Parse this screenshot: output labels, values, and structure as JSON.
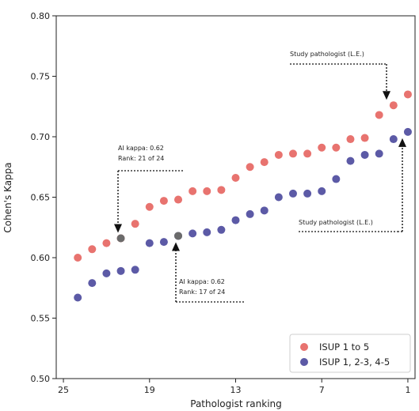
{
  "chart_data": {
    "type": "scatter",
    "xlabel": "Pathologist ranking",
    "ylabel": "Cohen's Kappa",
    "x_ticks": [
      25,
      19,
      13,
      7,
      1
    ],
    "y_ticks": [
      "0.50",
      "0.55",
      "0.60",
      "0.65",
      "0.70",
      "0.75",
      "0.80"
    ],
    "xlim": [
      25.5,
      0.5
    ],
    "ylim": [
      0.5,
      0.8
    ],
    "grid": false,
    "legend_position": "bottom-right",
    "series": [
      {
        "name": "ISUP 1 to 5",
        "color": "#e8736f",
        "x": [
          24,
          23,
          22,
          21,
          20,
          19,
          18,
          17,
          16,
          15,
          14,
          13,
          12,
          11,
          10,
          9,
          8,
          7,
          6,
          5,
          4,
          3,
          2,
          1
        ],
        "y": [
          0.6,
          0.607,
          0.612,
          0.616,
          0.628,
          0.642,
          0.647,
          0.648,
          0.655,
          0.655,
          0.656,
          0.666,
          0.675,
          0.679,
          0.685,
          0.686,
          0.686,
          0.691,
          0.691,
          0.698,
          0.699,
          0.718,
          0.726,
          0.735
        ]
      },
      {
        "name": "ISUP 1, 2-3, 4-5",
        "color": "#5c5aa6",
        "x": [
          24,
          23,
          22,
          21,
          20,
          19,
          18,
          17,
          16,
          15,
          14,
          13,
          12,
          11,
          10,
          9,
          8,
          7,
          6,
          5,
          4,
          3,
          2,
          1
        ],
        "y": [
          0.567,
          0.579,
          0.587,
          0.589,
          0.59,
          0.612,
          0.613,
          0.618,
          0.62,
          0.621,
          0.623,
          0.631,
          0.636,
          0.639,
          0.65,
          0.653,
          0.653,
          0.655,
          0.665,
          0.68,
          0.685,
          0.686,
          0.698,
          0.704
        ]
      }
    ],
    "highlight": [
      {
        "x": 21,
        "y": 0.616,
        "color": "#6b6b6b"
      },
      {
        "x": 17,
        "y": 0.618,
        "color": "#6b6b6b"
      }
    ],
    "annotations": [
      {
        "lines": [
          "Study pathologist (L.E.)"
        ],
        "point": {
          "x": 2,
          "y": 0.726
        }
      },
      {
        "lines": [
          "AI kappa: 0.62",
          "Rank: 21 of 24"
        ],
        "point": {
          "x": 21,
          "y": 0.616
        }
      },
      {
        "lines": [
          "AI kappa: 0.62",
          "Rank: 17 of 24"
        ],
        "point": {
          "x": 17,
          "y": 0.618
        }
      },
      {
        "lines": [
          "Study pathologist (L.E.)"
        ],
        "point": {
          "x": 1,
          "y": 0.704
        }
      }
    ]
  }
}
